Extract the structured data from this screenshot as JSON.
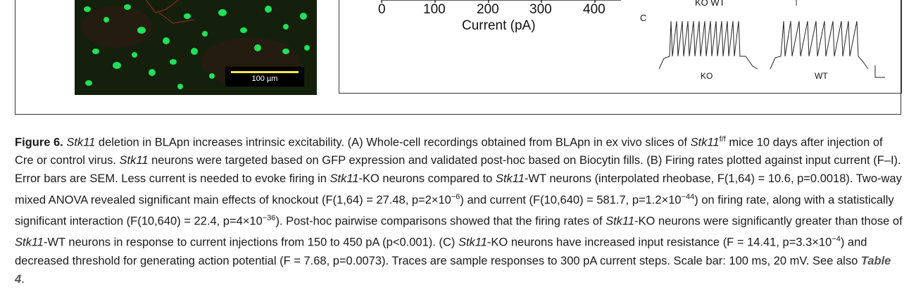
{
  "panel_a": {
    "scale_bar_label": "100 µm"
  },
  "panel_b": {
    "x_ticks": [
      "0",
      "100",
      "200",
      "300",
      "400"
    ],
    "x_axis_title": "Current (pA)"
  },
  "panel_c": {
    "panel_letter": "C",
    "top_labels": "KO  WT",
    "trace_label_ko": "KO",
    "trace_label_wt": "WT"
  },
  "caption": {
    "figure_label": "Figure 6.",
    "title_gene": "Stk11",
    "title_rest": " deletion in BLApn increases intrinsic excitability. (",
    "a_letter": "A",
    "a_text_1": ") Whole-cell recordings obtained from BLApn in ex vivo slices of ",
    "a_gene": "Stk11",
    "a_sup": "f/f",
    "a_text_2": " mice 10 days after injection of Cre or control virus. ",
    "a_gene_2": "Stk11",
    "a_text_3": " neurons were targeted based on GFP expression and validated post-hoc based on Biocytin fills. (",
    "b_letter": "B",
    "b_text_1": ") Firing rates plotted against input current (F–I). Error bars are SEM. Less current is needed to evoke firing in ",
    "b_gene_1": "Stk11",
    "b_text_2": "-KO neurons compared to ",
    "b_gene_2": "Stk11",
    "b_text_3": "-WT neurons (interpolated rheobase, F(1,64) = 10.6, p=0.0018). Two-way mixed ANOVA revealed significant main effects of knockout (F(1,64) = 27.48, p=2×10",
    "b_sup_1": "−6",
    "b_text_4": ") and current (F(10,640) = 581.7, p=1.2×10",
    "b_sup_2": "−44",
    "b_text_5": ") on firing rate, along with a statistically significant interaction (F(10,640) = 22.4, p=4×10",
    "b_sup_3": "−36",
    "b_text_6": "). Post-hoc pairwise comparisons showed that the firing rates of ",
    "b_gene_3": "Stk11",
    "b_text_7": "-KO neurons were significantly greater than those of ",
    "b_gene_4": "Stk11",
    "b_text_8": "-WT neurons in response to current injections from 150 to 450 pA (p<0.001). (",
    "c_letter": "C",
    "c_text_0": ") ",
    "c_gene": "Stk11",
    "c_text_1": "-KO neurons have increased input resistance (F = 14.41, p=3.3×10",
    "c_sup": "−4",
    "c_text_2": ") and decreased threshold for generating action potential (F = 7.68, p=0.0073). Traces are sample responses to 300 pA current steps. Scale bar: 100 ms, 20 mV. See also ",
    "table_ref": "Table 4",
    "end": "."
  }
}
